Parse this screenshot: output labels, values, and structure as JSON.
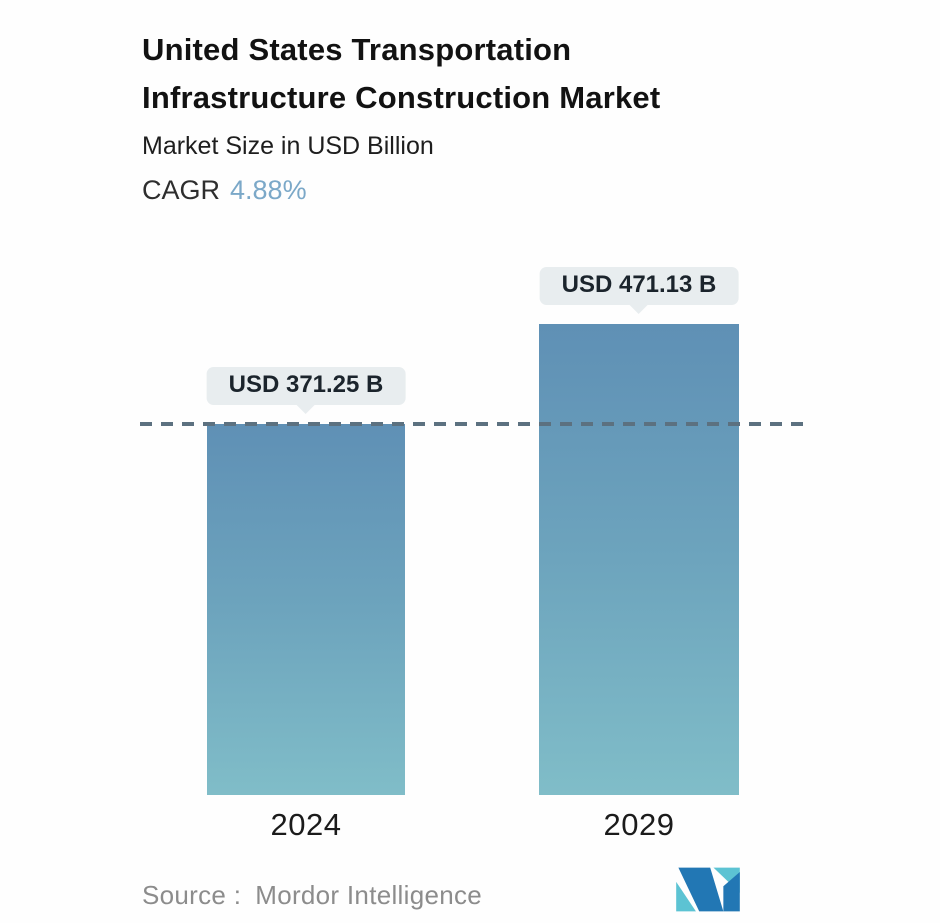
{
  "header": {
    "title_lines": [
      "United States Transportation",
      "Infrastructure Construction Market"
    ],
    "subtitle": "Market Size in USD Billion",
    "cagr_label": "CAGR",
    "cagr_value": "4.88%"
  },
  "chart_data": {
    "type": "bar",
    "title": "United States Transportation Infrastructure Construction Market",
    "subtitle": "Market Size in USD Billion",
    "unit": "USD Billion",
    "cagr_percent": 4.88,
    "categories": [
      "2024",
      "2029"
    ],
    "values": [
      371.25,
      471.13
    ],
    "value_labels": [
      "USD 371.25 B",
      "USD 471.13 B"
    ],
    "ylim": [
      0,
      500
    ],
    "grid": false,
    "legend": "none",
    "reference_line": {
      "style": "dashed",
      "at_value": 371.25
    },
    "pixels_per_billion": 1.0,
    "bar_gradient_top": "#5f90b5",
    "bar_gradient_bottom": "#80bdc8"
  },
  "footer": {
    "source_label": "Source :",
    "source_value": "Mordor Intelligence",
    "logo_name": "mordor-intelligence-logo"
  },
  "colors": {
    "accent_cagr_blue": "#7ba8c8",
    "tooltip_bg": "#e8edef",
    "dashed_line": "#5c7180",
    "text_dark": "#121212",
    "text_gray": "#8c8c8c",
    "logo_blue": "#2277b4",
    "logo_teal": "#5cc3d3"
  }
}
